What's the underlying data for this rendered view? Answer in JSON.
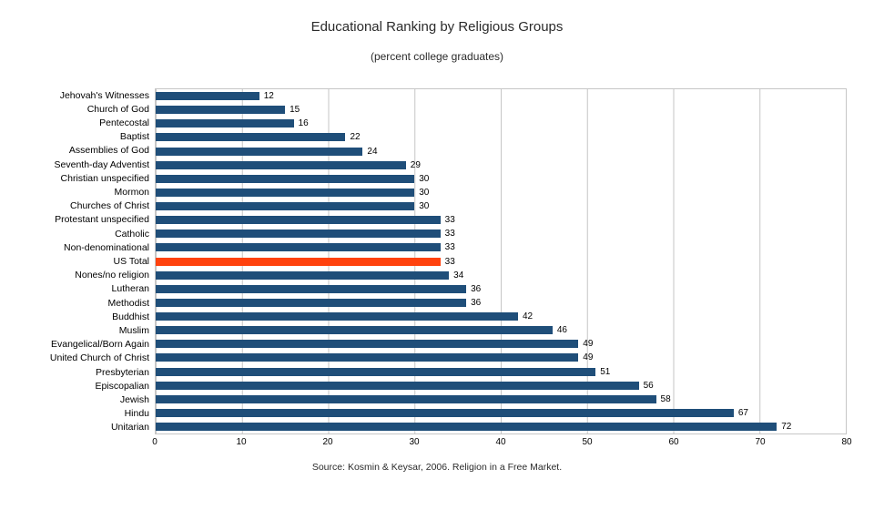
{
  "chart_data": {
    "type": "bar",
    "orientation": "horizontal",
    "title": "Educational Ranking by Religious Groups",
    "subtitle": "(percent college graduates)",
    "source": "Source: Kosmin & Keysar, 2006. Religion in a Free Market.",
    "categories": [
      "Jehovah's Witnesses",
      "Church of God",
      "Pentecostal",
      "Baptist",
      "Assemblies of God",
      "Seventh-day Adventist",
      "Christian unspecified",
      "Mormon",
      "Churches of Christ",
      "Protestant unspecified",
      "Catholic",
      "Non-denominational",
      "US Total",
      "Nones/no religion",
      "Lutheran",
      "Methodist",
      "Buddhist",
      "Muslim",
      "Evangelical/Born Again",
      "United Church of Christ",
      "Presbyterian",
      "Episcopalian",
      "Jewish",
      "Hindu",
      "Unitarian"
    ],
    "values": [
      12,
      15,
      16,
      22,
      24,
      29,
      30,
      30,
      30,
      33,
      33,
      33,
      33,
      34,
      36,
      36,
      42,
      46,
      49,
      49,
      51,
      56,
      58,
      67,
      72
    ],
    "highlight_category": "US Total",
    "xlim": [
      0,
      80
    ],
    "x_ticks": [
      "0",
      "10",
      "20",
      "30",
      "40",
      "50",
      "60",
      "70",
      "80"
    ],
    "grid": "vertical",
    "legend": "none",
    "colors": {
      "bar": "#1f4e79",
      "highlight": "#ff420e",
      "gridline": "#c6c6c6",
      "value_label": "#000000"
    }
  }
}
